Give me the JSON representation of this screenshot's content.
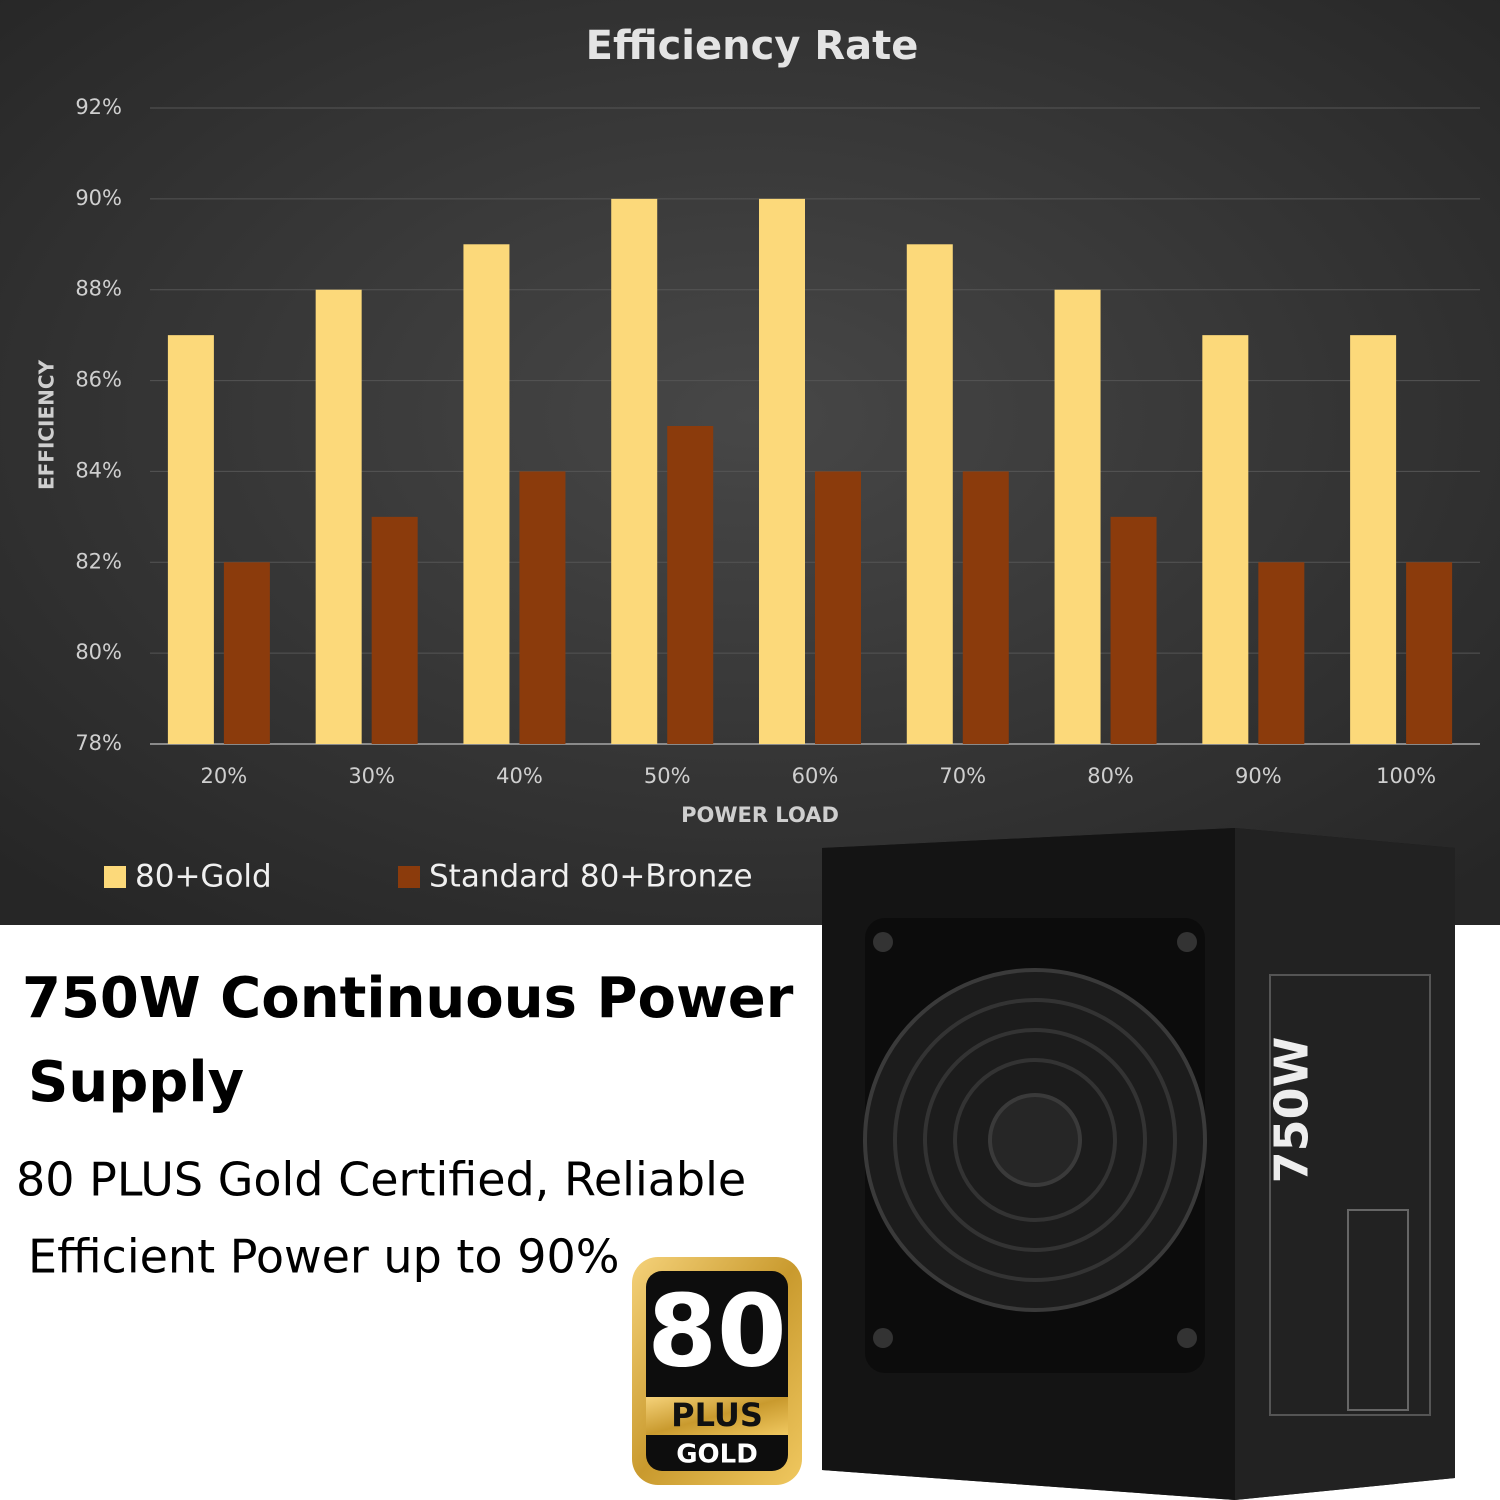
{
  "chart_data": {
    "type": "bar",
    "title": "Efficiency Rate",
    "xlabel": "POWER LOAD",
    "ylabel": "EFFICIENCY",
    "categories": [
      "20%",
      "30%",
      "40%",
      "50%",
      "60%",
      "70%",
      "80%",
      "90%",
      "100%"
    ],
    "series": [
      {
        "name": "80+Gold",
        "color": "#fcd97a",
        "values": [
          87,
          88,
          89,
          90,
          90,
          89,
          88,
          87,
          87
        ]
      },
      {
        "name": "Standard 80+Bronze",
        "color": "#8b3b0c",
        "values": [
          82,
          83,
          84,
          85,
          84,
          84,
          83,
          82,
          82
        ]
      }
    ],
    "ylim": [
      78,
      92
    ],
    "yticks": [
      {
        "value": 78,
        "label": "78%"
      },
      {
        "value": 80,
        "label": "80%"
      },
      {
        "value": 82,
        "label": "82%"
      },
      {
        "value": 84,
        "label": "84%"
      },
      {
        "value": 86,
        "label": "86%"
      },
      {
        "value": 88,
        "label": "88%"
      },
      {
        "value": 90,
        "label": "90%"
      },
      {
        "value": 92,
        "label": "92%"
      }
    ],
    "grid": true,
    "legend": "bottom-left"
  },
  "product": {
    "headline": [
      "750W Continuous Power",
      "Supply"
    ],
    "description": [
      "80 PLUS Gold Certified, Reliable",
      "Efficient Power up to 90%"
    ],
    "badge": {
      "number": "80",
      "plus": "PLUS",
      "grade": "GOLD"
    },
    "psu_label": "750W"
  }
}
